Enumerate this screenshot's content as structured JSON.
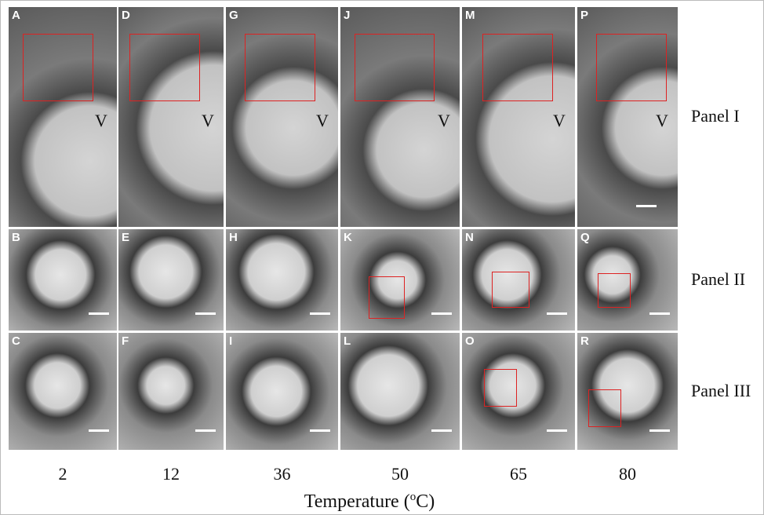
{
  "panels": [
    {
      "label": "Panel I",
      "tiles": [
        {
          "letter": "A",
          "mark": "V"
        },
        {
          "letter": "D",
          "mark": "V"
        },
        {
          "letter": "G",
          "mark": "V"
        },
        {
          "letter": "J",
          "mark": "V"
        },
        {
          "letter": "M",
          "mark": "V"
        },
        {
          "letter": "P",
          "mark": "V"
        }
      ]
    },
    {
      "label": "Panel II",
      "tiles": [
        {
          "letter": "B"
        },
        {
          "letter": "E"
        },
        {
          "letter": "H"
        },
        {
          "letter": "K"
        },
        {
          "letter": "N"
        },
        {
          "letter": "Q"
        }
      ]
    },
    {
      "label": "Panel III",
      "tiles": [
        {
          "letter": "C"
        },
        {
          "letter": "F"
        },
        {
          "letter": "I"
        },
        {
          "letter": "L"
        },
        {
          "letter": "O"
        },
        {
          "letter": "R"
        }
      ]
    }
  ],
  "temperatures": [
    "2",
    "12",
    "36",
    "50",
    "65",
    "80"
  ],
  "x_axis_label": {
    "before": "Temperature (",
    "superscript": "o",
    "after": "C)"
  }
}
